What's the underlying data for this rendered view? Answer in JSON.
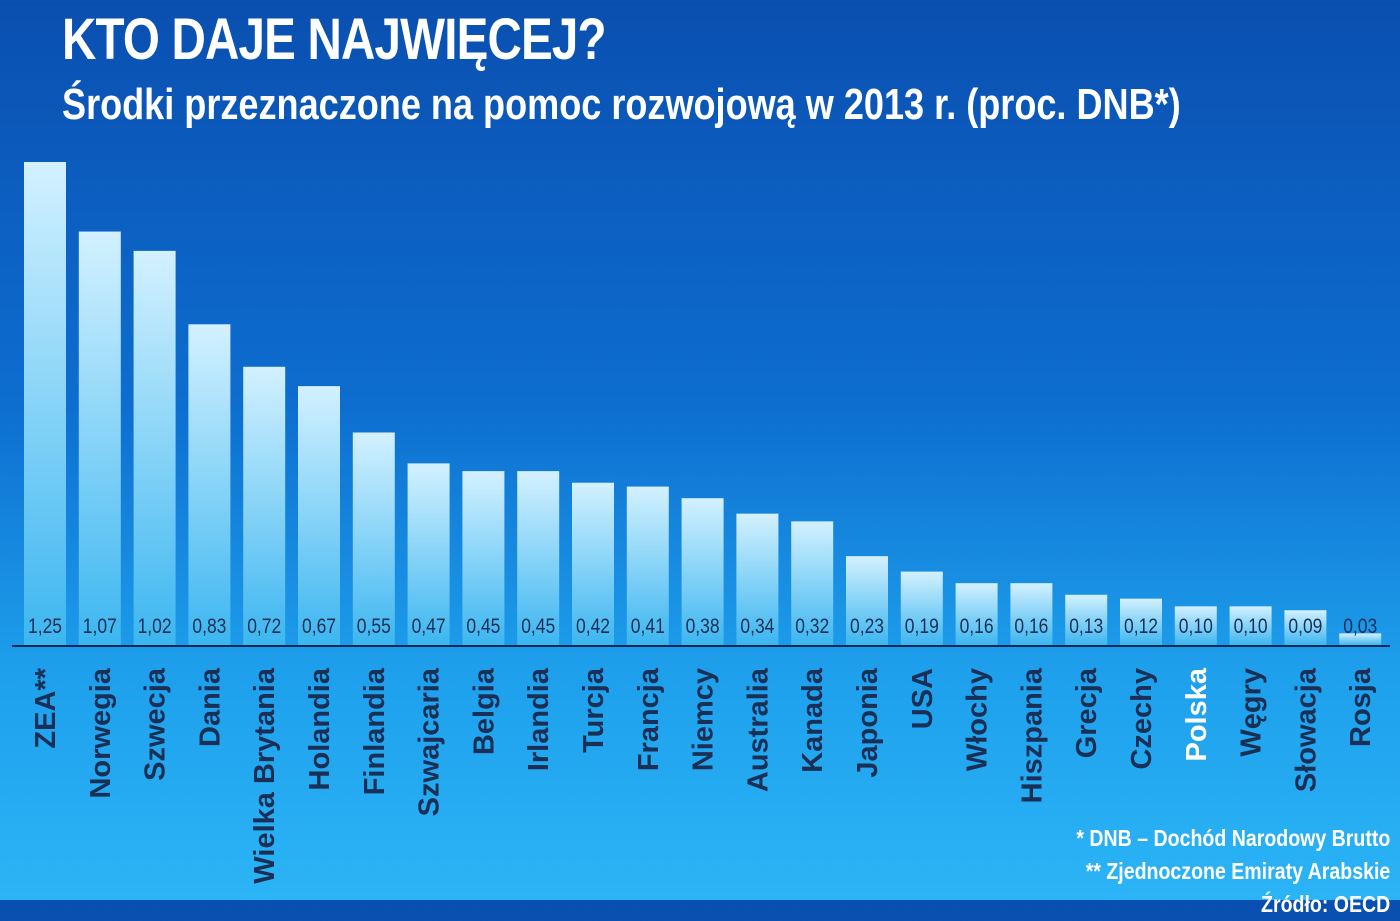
{
  "title": "KTO DAJE NAJWIĘCEJ?",
  "subtitle": "Środki przeznaczone na pomoc rozwojową w 2013 r. (proc. DNB*)",
  "chart_data": {
    "type": "bar",
    "categories": [
      "ZEA**",
      "Norwegia",
      "Szwecja",
      "Dania",
      "Wielka Brytania",
      "Holandia",
      "Finlandia",
      "Szwajcaria",
      "Belgia",
      "Irlandia",
      "Turcja",
      "Francja",
      "Niemcy",
      "Australia",
      "Kanada",
      "Japonia",
      "USA",
      "Włochy",
      "Hiszpania",
      "Grecja",
      "Czechy",
      "Polska",
      "Węgry",
      "Słowacja",
      "Rosja"
    ],
    "values": [
      1.25,
      1.07,
      1.02,
      0.83,
      0.72,
      0.67,
      0.55,
      0.47,
      0.45,
      0.45,
      0.42,
      0.41,
      0.38,
      0.34,
      0.32,
      0.23,
      0.19,
      0.16,
      0.16,
      0.13,
      0.12,
      0.1,
      0.1,
      0.09,
      0.03
    ],
    "value_labels": [
      "1,25",
      "1,07",
      "1,02",
      "0,83",
      "0,72",
      "0,67",
      "0,55",
      "0,47",
      "0,45",
      "0,45",
      "0,42",
      "0,41",
      "0,38",
      "0,34",
      "0,32",
      "0,23",
      "0,19",
      "0,16",
      "0,16",
      "0,13",
      "0,12",
      "0,10",
      "0,10",
      "0,09",
      "0,03"
    ],
    "highlight": "Polska",
    "ylim": [
      0,
      1.25
    ],
    "grid": false,
    "legend": "none"
  },
  "notes": [
    "* DNB – Dochód Narodowy Brutto",
    "** Zjednoczone Emiraty Arabskie",
    "Źródło: OECD"
  ],
  "colors": {
    "bar_top": "#d3f1ff",
    "bar_bottom": "#3cb6f0",
    "label_normal": "#1a2f55",
    "label_highlight": "#ffffff",
    "baseline": "#0b2a55"
  }
}
